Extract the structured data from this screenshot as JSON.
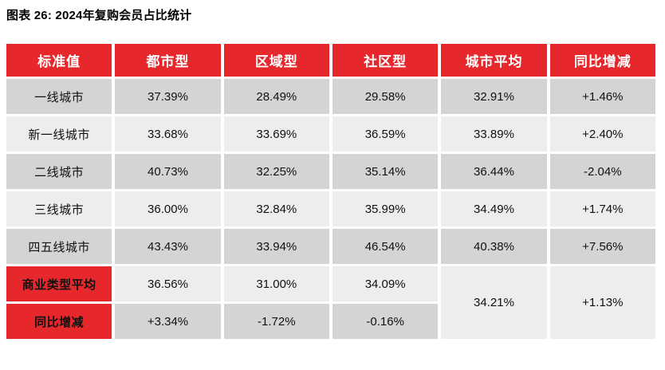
{
  "page_title": "图表 26: 2024年复购会员占比统计",
  "colors": {
    "accent_red": "#E6282D",
    "row_dark": "#D4D4D4",
    "row_light": "#EDEDED",
    "header_text": "#FFFFFF",
    "body_text": "#111111"
  },
  "chart_data": {
    "type": "table",
    "title": "图表 26: 2024年复购会员占比统计",
    "columns": [
      "标准值",
      "都市型",
      "区域型",
      "社区型",
      "城市平均",
      "同比增减"
    ],
    "rows": [
      {
        "label": "一线城市",
        "values": [
          "37.39%",
          "28.49%",
          "29.58%",
          "32.91%",
          "+1.46%"
        ]
      },
      {
        "label": "新一线城市",
        "values": [
          "33.68%",
          "33.69%",
          "36.59%",
          "33.89%",
          "+2.40%"
        ]
      },
      {
        "label": "二线城市",
        "values": [
          "40.73%",
          "32.25%",
          "35.14%",
          "36.44%",
          "-2.04%"
        ]
      },
      {
        "label": "三线城市",
        "values": [
          "36.00%",
          "32.84%",
          "35.99%",
          "34.49%",
          "+1.74%"
        ]
      },
      {
        "label": "四五线城市",
        "values": [
          "43.43%",
          "33.94%",
          "46.54%",
          "40.38%",
          "+7.56%"
        ]
      },
      {
        "label": "商业类型平均",
        "values": [
          "36.56%",
          "31.00%",
          "34.09%"
        ]
      },
      {
        "label": "同比增减",
        "values": [
          "+3.34%",
          "-1.72%",
          "-0.16%"
        ]
      }
    ],
    "merged": {
      "city_avg": "34.21%",
      "yoy_change": "+1.13%"
    },
    "layout_hints": {
      "merged_note": "城市平均 and 同比增减 cells span the last two rows",
      "row_striping": "dark/light alternating, last two row labels on red"
    }
  }
}
